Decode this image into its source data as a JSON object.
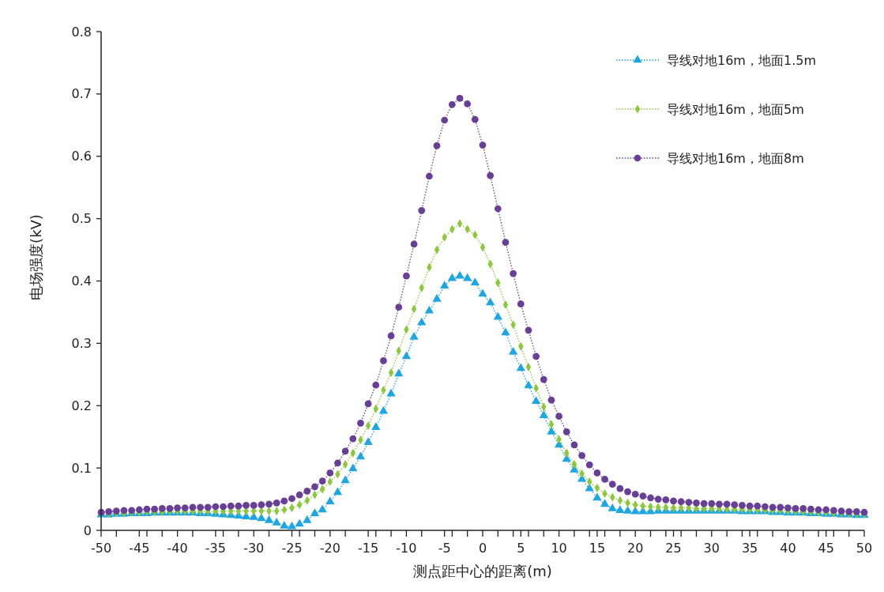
{
  "chart_data": {
    "type": "line",
    "xlabel": "测点距中心的距离(m)",
    "ylabel": "电场强度(kV)",
    "x": [
      -50,
      -49,
      -48,
      -47,
      -46,
      -45,
      -44,
      -43,
      -42,
      -41,
      -40,
      -39,
      -38,
      -37,
      -36,
      -35,
      -34,
      -33,
      -32,
      -31,
      -30,
      -29,
      -28,
      -27,
      -26,
      -25,
      -24,
      -23,
      -22,
      -21,
      -20,
      -19,
      -18,
      -17,
      -16,
      -15,
      -14,
      -13,
      -12,
      -11,
      -10,
      -9,
      -8,
      -7,
      -6,
      -5,
      -4,
      -3,
      -2,
      -1,
      0,
      1,
      2,
      3,
      4,
      5,
      6,
      7,
      8,
      9,
      10,
      11,
      12,
      13,
      14,
      15,
      16,
      17,
      18,
      19,
      20,
      21,
      22,
      23,
      24,
      25,
      26,
      27,
      28,
      29,
      30,
      31,
      32,
      33,
      34,
      35,
      36,
      37,
      38,
      39,
      40,
      41,
      42,
      43,
      44,
      45,
      46,
      47,
      48,
      49,
      50
    ],
    "series": [
      {
        "name": "导线对地16m，地面1.5m",
        "color": "#1ea6e2",
        "marker": "triangle",
        "values": [
          0.025,
          0.025,
          0.026,
          0.026,
          0.027,
          0.027,
          0.027,
          0.028,
          0.028,
          0.028,
          0.028,
          0.028,
          0.028,
          0.027,
          0.027,
          0.026,
          0.025,
          0.024,
          0.023,
          0.022,
          0.021,
          0.019,
          0.016,
          0.012,
          0.007,
          0.006,
          0.01,
          0.016,
          0.027,
          0.033,
          0.046,
          0.061,
          0.08,
          0.099,
          0.118,
          0.141,
          0.165,
          0.191,
          0.219,
          0.251,
          0.279,
          0.31,
          0.333,
          0.352,
          0.371,
          0.392,
          0.404,
          0.408,
          0.404,
          0.397,
          0.379,
          0.365,
          0.342,
          0.317,
          0.286,
          0.26,
          0.232,
          0.207,
          0.184,
          0.158,
          0.137,
          0.114,
          0.097,
          0.082,
          0.067,
          0.052,
          0.042,
          0.035,
          0.032,
          0.031,
          0.03,
          0.03,
          0.03,
          0.031,
          0.031,
          0.031,
          0.031,
          0.031,
          0.031,
          0.031,
          0.031,
          0.031,
          0.031,
          0.031,
          0.03,
          0.03,
          0.03,
          0.03,
          0.029,
          0.029,
          0.028,
          0.028,
          0.028,
          0.027,
          0.027,
          0.026,
          0.026,
          0.025,
          0.025,
          0.024,
          0.024
        ]
      },
      {
        "name": "导线对地16m，地面5m",
        "color": "#8cc83c",
        "marker": "diamond",
        "values": [
          0.027,
          0.027,
          0.028,
          0.028,
          0.029,
          0.029,
          0.03,
          0.03,
          0.03,
          0.031,
          0.031,
          0.031,
          0.031,
          0.031,
          0.031,
          0.031,
          0.031,
          0.031,
          0.031,
          0.031,
          0.031,
          0.031,
          0.031,
          0.031,
          0.033,
          0.036,
          0.041,
          0.048,
          0.057,
          0.066,
          0.078,
          0.09,
          0.106,
          0.124,
          0.145,
          0.168,
          0.195,
          0.225,
          0.253,
          0.288,
          0.322,
          0.355,
          0.389,
          0.422,
          0.45,
          0.47,
          0.483,
          0.492,
          0.483,
          0.474,
          0.454,
          0.427,
          0.397,
          0.362,
          0.33,
          0.295,
          0.262,
          0.228,
          0.198,
          0.17,
          0.146,
          0.124,
          0.106,
          0.091,
          0.078,
          0.068,
          0.059,
          0.053,
          0.048,
          0.044,
          0.041,
          0.039,
          0.038,
          0.037,
          0.037,
          0.036,
          0.036,
          0.036,
          0.035,
          0.035,
          0.035,
          0.035,
          0.034,
          0.034,
          0.034,
          0.034,
          0.033,
          0.033,
          0.032,
          0.032,
          0.031,
          0.031,
          0.03,
          0.03,
          0.029,
          0.029,
          0.028,
          0.028,
          0.027,
          0.027,
          0.026
        ]
      },
      {
        "name": "导线对地16m，地面8m",
        "color": "#673f96",
        "marker": "circle",
        "values": [
          0.029,
          0.03,
          0.031,
          0.032,
          0.032,
          0.033,
          0.034,
          0.034,
          0.035,
          0.035,
          0.036,
          0.036,
          0.037,
          0.037,
          0.037,
          0.038,
          0.038,
          0.039,
          0.039,
          0.04,
          0.04,
          0.041,
          0.042,
          0.044,
          0.047,
          0.051,
          0.057,
          0.063,
          0.07,
          0.079,
          0.092,
          0.108,
          0.127,
          0.147,
          0.172,
          0.203,
          0.233,
          0.272,
          0.312,
          0.358,
          0.408,
          0.459,
          0.513,
          0.568,
          0.617,
          0.658,
          0.683,
          0.693,
          0.684,
          0.659,
          0.618,
          0.569,
          0.516,
          0.462,
          0.412,
          0.363,
          0.321,
          0.279,
          0.242,
          0.209,
          0.183,
          0.158,
          0.137,
          0.12,
          0.105,
          0.092,
          0.082,
          0.074,
          0.067,
          0.062,
          0.058,
          0.055,
          0.052,
          0.05,
          0.049,
          0.047,
          0.046,
          0.045,
          0.044,
          0.043,
          0.043,
          0.042,
          0.042,
          0.041,
          0.04,
          0.039,
          0.039,
          0.038,
          0.037,
          0.037,
          0.036,
          0.035,
          0.035,
          0.034,
          0.033,
          0.033,
          0.032,
          0.031,
          0.03,
          0.03,
          0.029
        ]
      }
    ],
    "xlim": [
      -50,
      50
    ],
    "xticks": [
      -50,
      {
        "value": -48,
        "label": null
      },
      -45,
      {
        "value": -44,
        "label": null
      },
      {
        "value": -42,
        "label": null
      },
      -40,
      {
        "value": -38,
        "label": null
      },
      -35,
      {
        "value": -34,
        "label": null
      },
      {
        "value": -32,
        "label": null
      },
      -30,
      {
        "value": -28,
        "label": null
      },
      -25,
      {
        "value": -24,
        "label": null
      },
      {
        "value": -22,
        "label": null
      },
      -20,
      {
        "value": -18,
        "label": null
      },
      -15,
      {
        "value": -14,
        "label": null
      },
      {
        "value": -12,
        "label": null
      },
      -10,
      {
        "value": -8,
        "label": null
      },
      -5,
      {
        "value": -4,
        "label": null
      },
      {
        "value": -2,
        "label": null
      },
      0,
      {
        "value": 2,
        "label": null
      },
      5,
      {
        "value": 4,
        "label": null
      },
      {
        "value": 6,
        "label": null
      },
      {
        "value": 8,
        "label": null
      },
      10,
      {
        "value": 12,
        "label": null
      },
      15,
      {
        "value": 14,
        "label": null
      },
      {
        "value": 16,
        "label": null
      },
      {
        "value": 18,
        "label": null
      },
      20,
      {
        "value": 22,
        "label": null
      },
      25,
      {
        "value": 24,
        "label": null
      },
      {
        "value": 26,
        "label": null
      },
      {
        "value": 28,
        "label": null
      },
      30,
      {
        "value": 32,
        "label": null
      },
      35,
      {
        "value": 34,
        "label": null
      },
      {
        "value": 36,
        "label": null
      },
      {
        "value": 38,
        "label": null
      },
      40,
      {
        "value": 42,
        "label": null
      },
      45,
      {
        "value": 44,
        "label": null
      },
      {
        "value": 46,
        "label": null
      },
      {
        "value": 48,
        "label": null
      },
      50
    ],
    "ylim": [
      0,
      0.8
    ],
    "yticks": [
      0,
      0.1,
      0.2,
      0.3,
      0.4,
      0.5,
      0.6,
      0.7,
      0.8
    ],
    "grid": false,
    "legend": "top right",
    "line_style": "dotted"
  }
}
